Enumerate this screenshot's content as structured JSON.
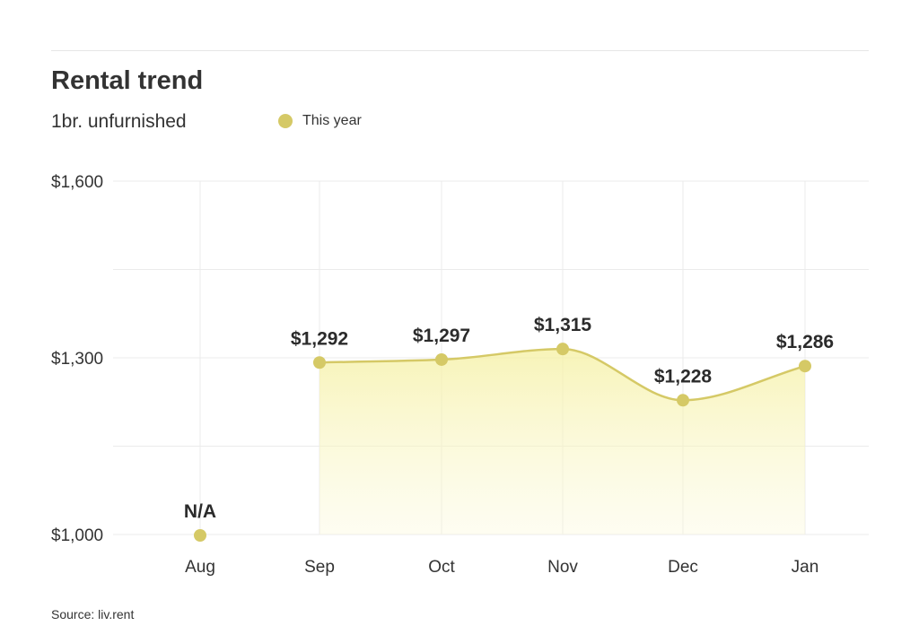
{
  "header": {
    "title": "Rental trend",
    "subtitle": "1br. unfurnished",
    "legend_label": "This year"
  },
  "footer": {
    "source": "Source: liv.rent"
  },
  "colors": {
    "series": "#d5c966",
    "area_top": "#f7f4a6",
    "grid": "#ebebeb",
    "text": "#333333"
  },
  "chart_data": {
    "type": "area",
    "categories": [
      "Aug",
      "Sep",
      "Oct",
      "Nov",
      "Dec",
      "Jan"
    ],
    "series": [
      {
        "name": "This year",
        "values": [
          null,
          1292,
          1297,
          1315,
          1228,
          1286
        ]
      }
    ],
    "data_labels": [
      "N/A",
      "$1,292",
      "$1,297",
      "$1,315",
      "$1,228",
      "$1,286"
    ],
    "y_ticks": [
      "$1,000",
      "$1,300",
      "$1,600"
    ],
    "ylim": [
      1000,
      1600
    ],
    "grid": true,
    "legend": "top"
  }
}
